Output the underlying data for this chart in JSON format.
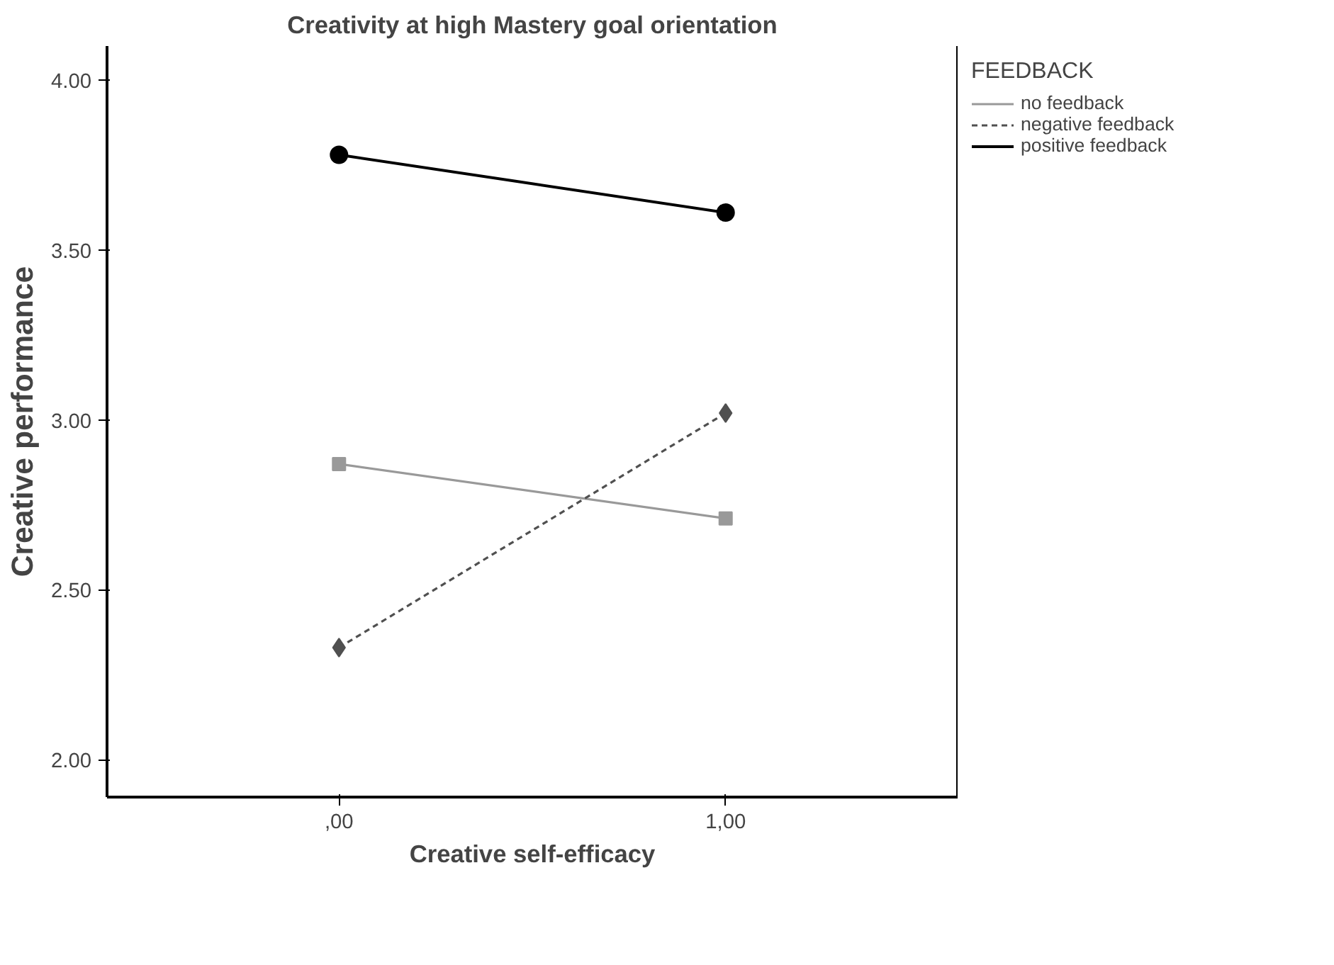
{
  "chart_data": {
    "type": "line",
    "title": "Creativity at high Mastery goal orientation",
    "xlabel": "Creative self-efficacy",
    "ylabel": "Creative performance",
    "legend_title": "FEEDBACK",
    "x": [
      0,
      1
    ],
    "xlim": [
      -0.6,
      1.6
    ],
    "xticks": [
      {
        "value": 0,
        "label": ",00"
      },
      {
        "value": 1,
        "label": "1,00"
      }
    ],
    "ylim": [
      1.89,
      4.1
    ],
    "yticks": [
      {
        "value": 2,
        "label": "2.00"
      },
      {
        "value": 2.5,
        "label": "2.50"
      },
      {
        "value": 3,
        "label": "3.00"
      },
      {
        "value": 3.5,
        "label": "3.50"
      },
      {
        "value": 4,
        "label": "4.00"
      }
    ],
    "grid": false,
    "legend": "top right",
    "series": [
      {
        "name": "no feedback",
        "color": "#999999",
        "values": [
          2.87,
          2.71
        ],
        "marker": "square",
        "line_style": "solid"
      },
      {
        "name": "negative feedback",
        "color": "#505050",
        "values": [
          2.33,
          3.02
        ],
        "marker": "diamond",
        "line_style": "dashed"
      },
      {
        "name": "positive feedback",
        "color": "#000000",
        "values": [
          3.78,
          3.61
        ],
        "marker": "circle",
        "line_style": "solid"
      }
    ]
  }
}
